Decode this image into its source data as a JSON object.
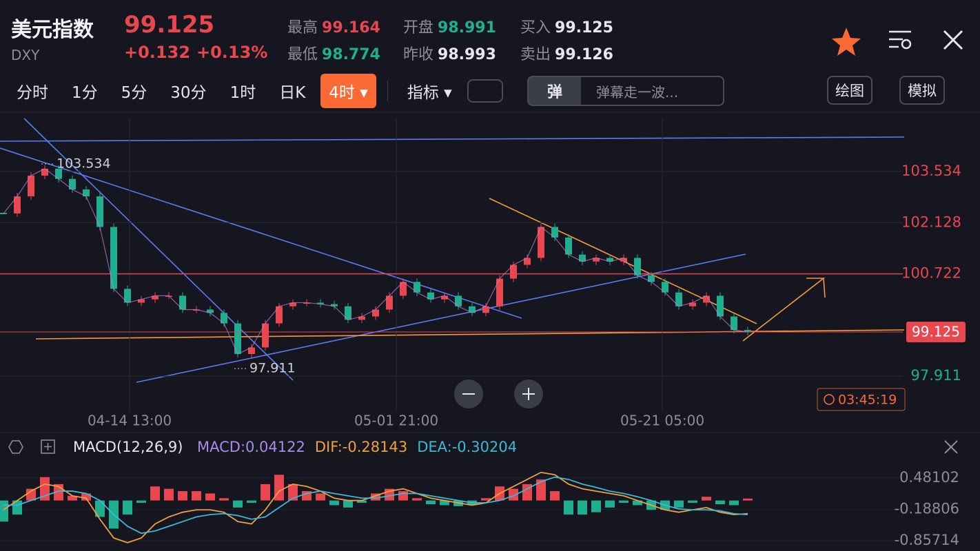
{
  "header": {
    "title": "美元指数",
    "symbol": "DXY",
    "price": "99.125",
    "change": "+0.132",
    "change_pct": "+0.13%",
    "stats": [
      {
        "label": "最高",
        "value": "99.164"
      },
      {
        "label": "最低",
        "value": "98.774"
      },
      {
        "label": "开盘",
        "value": "98.991"
      },
      {
        "label": "昨收",
        "value": "98.993"
      },
      {
        "label": "买入",
        "value": "99.125"
      },
      {
        "label": "卖出",
        "value": "99.126"
      }
    ]
  },
  "toolbar": {
    "tabs": [
      "分时",
      "1分",
      "5分",
      "30分",
      "1时",
      "日K",
      "4时"
    ],
    "active_tab": 6,
    "indicator": "指标",
    "danmaku_badge": "弹",
    "danmaku_placeholder": "弹幕走一波...",
    "draw": "绘图",
    "simulate": "模拟"
  },
  "countdown": "03:45:19",
  "chart_data": [
    {
      "type": "candlestick",
      "x": [
        0,
        1,
        2,
        3,
        4,
        5,
        6,
        7,
        8,
        9,
        10,
        11,
        12,
        13,
        14,
        15,
        16,
        17,
        18,
        19,
        20,
        21,
        22,
        23,
        24,
        25,
        26,
        27,
        28,
        29,
        30,
        31,
        32,
        33,
        34,
        35,
        36,
        37,
        38,
        39,
        40,
        41,
        42,
        43,
        44,
        45,
        46,
        47,
        48,
        49,
        50,
        51,
        52,
        53,
        54
      ],
      "values": [
        102.38,
        102.85,
        103.42,
        103.61,
        103.33,
        103.04,
        102.85,
        102.01,
        100.31,
        99.93,
        100.02,
        100.12,
        100.12,
        99.74,
        99.74,
        99.65,
        99.36,
        98.52,
        98.7,
        99.36,
        99.83,
        99.93,
        99.93,
        99.89,
        99.83,
        99.46,
        99.55,
        99.74,
        100.12,
        100.5,
        100.21,
        100.02,
        100.12,
        99.83,
        99.65,
        99.83,
        100.59,
        100.97,
        101.16,
        102.01,
        101.72,
        101.25,
        101.06,
        101.16,
        101.06,
        101.16,
        100.68,
        100.5,
        100.21,
        99.83,
        99.93,
        100.12,
        99.55,
        99.18,
        99.125
      ],
      "xlim": [
        -0.25,
        65.25
      ],
      "xticks": [
        {
          "value": 9.15,
          "label": "04-14 13:00"
        },
        {
          "value": 28.5,
          "label": "05-01 21:00"
        },
        {
          "value": 47.8,
          "label": "05-21 05:00"
        }
      ],
      "ylim": [
        96.93,
        104.99
      ],
      "yticks": [
        103.534,
        102.128,
        100.722,
        97.911
      ],
      "up_color": "#e8474f",
      "down_color": "#1fae8f",
      "grid": true
    },
    {
      "type": "macd",
      "title": "MACD(12,26,9)",
      "x": [
        0,
        1,
        2,
        3,
        4,
        5,
        6,
        7,
        8,
        9,
        10,
        11,
        12,
        13,
        14,
        15,
        16,
        17,
        18,
        19,
        20,
        21,
        22,
        23,
        24,
        25,
        26,
        27,
        28,
        29,
        30,
        31,
        32,
        33,
        34,
        35,
        36,
        37,
        38,
        39,
        40,
        41,
        42,
        43,
        44,
        45,
        46,
        47,
        48,
        49,
        50,
        51,
        52,
        53,
        54
      ],
      "xlim": [
        -0.25,
        65.25
      ],
      "ylim": [
        -1.078,
        0.907
      ],
      "yticks": [
        0.48102,
        -0.18806,
        -0.85714
      ],
      "up_color": "#e8474f",
      "down_color": "#1fae8f",
      "series": [
        {
          "name": "MACD:0.04122",
          "color": "#a98ce8",
          "values": [
            -0.45,
            -0.3,
            0.25,
            0.5,
            0.35,
            0.1,
            0.15,
            -0.35,
            -0.6,
            -0.3,
            -0.05,
            0.3,
            0.25,
            0.2,
            0.2,
            0.15,
            0.05,
            -0.15,
            -0.05,
            0.35,
            0.55,
            0.35,
            0.2,
            0.15,
            -0.1,
            -0.15,
            -0.05,
            0.15,
            0.25,
            0.2,
            0.05,
            -0.08,
            -0.1,
            -0.12,
            -0.1,
            0.05,
            0.3,
            0.25,
            0.35,
            0.45,
            0.2,
            -0.3,
            -0.3,
            -0.25,
            -0.15,
            -0.05,
            -0.1,
            -0.2,
            -0.2,
            -0.15,
            -0.05,
            0.08,
            -0.08,
            -0.1,
            0.04122
          ]
        },
        {
          "name": "DIF:-0.28143",
          "color": "#f0a040",
          "values": [
            -0.2,
            0.0,
            0.2,
            0.35,
            0.3,
            0.1,
            0.05,
            -0.4,
            -0.8,
            -0.9,
            -0.8,
            -0.5,
            -0.35,
            -0.25,
            -0.2,
            -0.2,
            -0.25,
            -0.45,
            -0.5,
            -0.2,
            0.2,
            0.35,
            0.3,
            0.2,
            0.05,
            0.0,
            0.0,
            0.1,
            0.2,
            0.25,
            0.15,
            0.05,
            0.0,
            -0.05,
            -0.1,
            -0.05,
            0.15,
            0.3,
            0.45,
            0.6,
            0.55,
            0.35,
            0.25,
            0.2,
            0.15,
            0.1,
            0.0,
            -0.1,
            -0.2,
            -0.25,
            -0.2,
            -0.15,
            -0.25,
            -0.3,
            -0.28143
          ]
        },
        {
          "name": "DEA:-0.30204",
          "color": "#3fb8d6",
          "values": [
            -0.1,
            -0.1,
            0.0,
            0.1,
            0.2,
            0.2,
            0.15,
            0.0,
            -0.3,
            -0.55,
            -0.7,
            -0.65,
            -0.55,
            -0.45,
            -0.35,
            -0.3,
            -0.28,
            -0.32,
            -0.4,
            -0.35,
            -0.15,
            0.05,
            0.15,
            0.2,
            0.15,
            0.1,
            0.05,
            0.05,
            0.1,
            0.15,
            0.15,
            0.1,
            0.05,
            0.0,
            -0.05,
            -0.05,
            0.0,
            0.1,
            0.25,
            0.4,
            0.5,
            0.45,
            0.35,
            0.28,
            0.2,
            0.15,
            0.08,
            0.0,
            -0.1,
            -0.18,
            -0.2,
            -0.2,
            -0.22,
            -0.28,
            -0.30204
          ]
        }
      ]
    }
  ]
}
